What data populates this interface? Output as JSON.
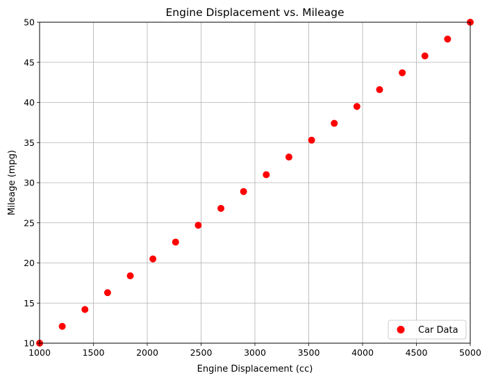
{
  "chart_data": {
    "type": "scatter",
    "title": "Engine Displacement vs. Mileage",
    "xlabel": "Engine Displacement (cc)",
    "ylabel": "Mileage (mpg)",
    "xlim": [
      1000,
      5000
    ],
    "ylim": [
      10,
      50
    ],
    "xticks": [
      "1000",
      "1500",
      "2000",
      "2500",
      "3000",
      "3500",
      "4000",
      "4500",
      "5000"
    ],
    "yticks": [
      "10",
      "15",
      "20",
      "25",
      "30",
      "35",
      "40",
      "45",
      "50"
    ],
    "grid": true,
    "legend_position": "lower-right",
    "marker_color": "#ff0000",
    "series": [
      {
        "name": "Car Data",
        "x": [
          1000,
          1210.5,
          1421.1,
          1631.6,
          1842.1,
          2052.6,
          2263.2,
          2473.7,
          2684.2,
          2894.7,
          3105.3,
          3315.8,
          3526.3,
          3736.8,
          3947.4,
          4157.9,
          4368.4,
          4578.9,
          4789.5,
          5000
        ],
        "y": [
          10.0,
          12.1,
          14.2,
          16.3,
          18.4,
          20.5,
          22.6,
          24.7,
          26.8,
          28.9,
          31.0,
          33.2,
          35.3,
          37.4,
          39.5,
          41.6,
          43.7,
          45.8,
          47.9,
          50.0
        ]
      }
    ]
  }
}
